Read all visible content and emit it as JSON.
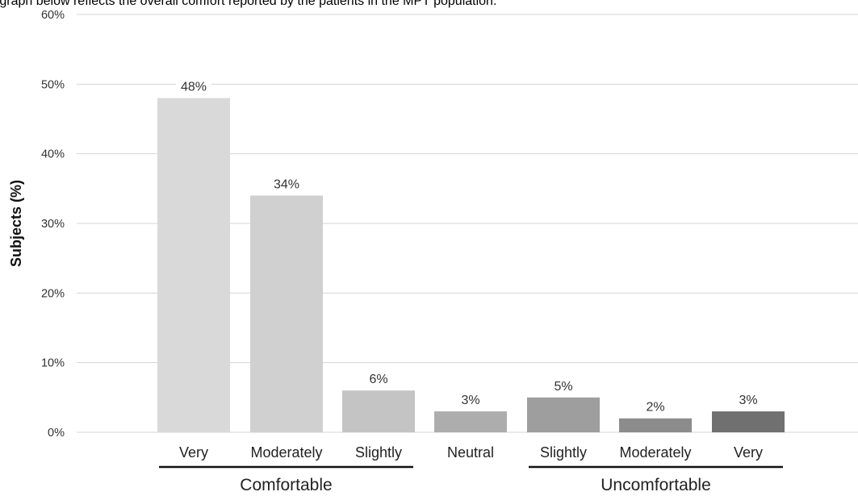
{
  "caption": "e graph below reflects the overall comfort reported by the patients in the MPT population.",
  "chart_data": {
    "type": "bar",
    "ylabel": "Subjects (%)",
    "ylim": [
      0,
      60
    ],
    "yticks": [
      "0%",
      "10%",
      "20%",
      "30%",
      "40%",
      "50%",
      "60%"
    ],
    "grid": true,
    "categories": [
      "Very",
      "Moderately",
      "Slightly",
      "Neutral",
      "Slightly",
      "Moderately",
      "Very"
    ],
    "values": [
      48,
      34,
      6,
      3,
      5,
      2,
      3
    ],
    "value_labels": [
      "48%",
      "34%",
      "6%",
      "3%",
      "5%",
      "2%",
      "3%"
    ],
    "bar_colors": [
      "#d9d9d9",
      "#d0d0d0",
      "#c4c4c4",
      "#adadad",
      "#9e9e9e",
      "#8c8c8c",
      "#707070"
    ],
    "groups": [
      {
        "label": "Comfortable",
        "categories": [
          0,
          1,
          2
        ]
      },
      {
        "label": "Uncomfortable",
        "categories": [
          4,
          5,
          6
        ]
      }
    ]
  }
}
